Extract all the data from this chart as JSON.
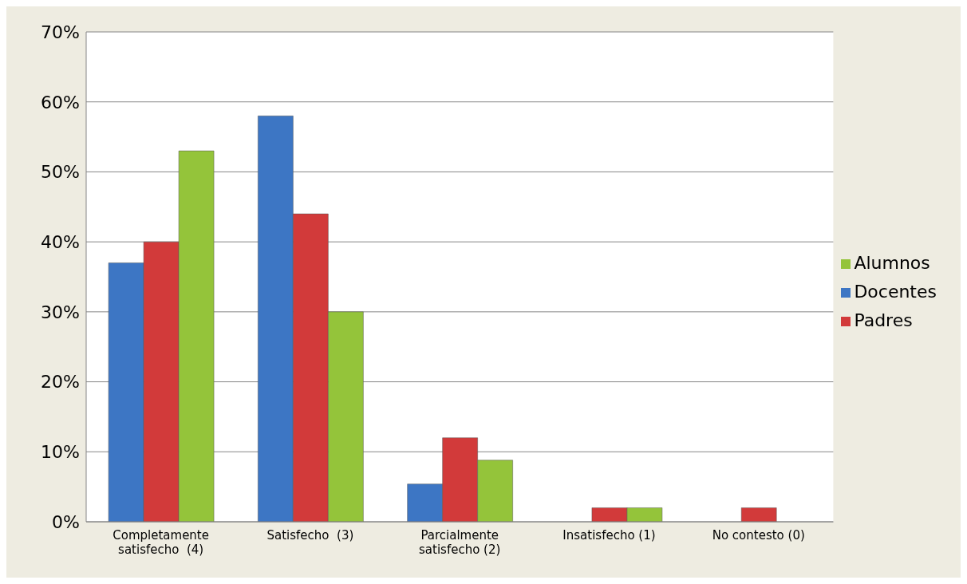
{
  "chart_data": {
    "type": "bar",
    "categories": [
      "Completamente satisfecho  (4)",
      "Satisfecho  (3)",
      "Parcialmente satisfecho (2)",
      "Insatisfecho (1)",
      "No contesto (0)"
    ],
    "series": [
      {
        "name": "Docentes",
        "color": "#3d76c4",
        "values": [
          37,
          58,
          5.4,
          null,
          null
        ]
      },
      {
        "name": "Padres",
        "color": "#d23a3a",
        "values": [
          40,
          44,
          12,
          2,
          2
        ]
      },
      {
        "name": "Alumnos",
        "color": "#94c43a",
        "values": [
          53,
          30,
          8.8,
          2,
          null
        ]
      }
    ],
    "ylim": [
      0,
      70
    ],
    "yticks": [
      {
        "value": 0,
        "label": "0%"
      },
      {
        "value": 10,
        "label": "10%"
      },
      {
        "value": 20,
        "label": "20%"
      },
      {
        "value": 30,
        "label": "30%"
      },
      {
        "value": 40,
        "label": "40%"
      },
      {
        "value": 50,
        "label": "50%"
      },
      {
        "value": 60,
        "label": "60%"
      },
      {
        "value": 70,
        "label": "70%"
      }
    ],
    "grid": "y",
    "legend": "right"
  }
}
